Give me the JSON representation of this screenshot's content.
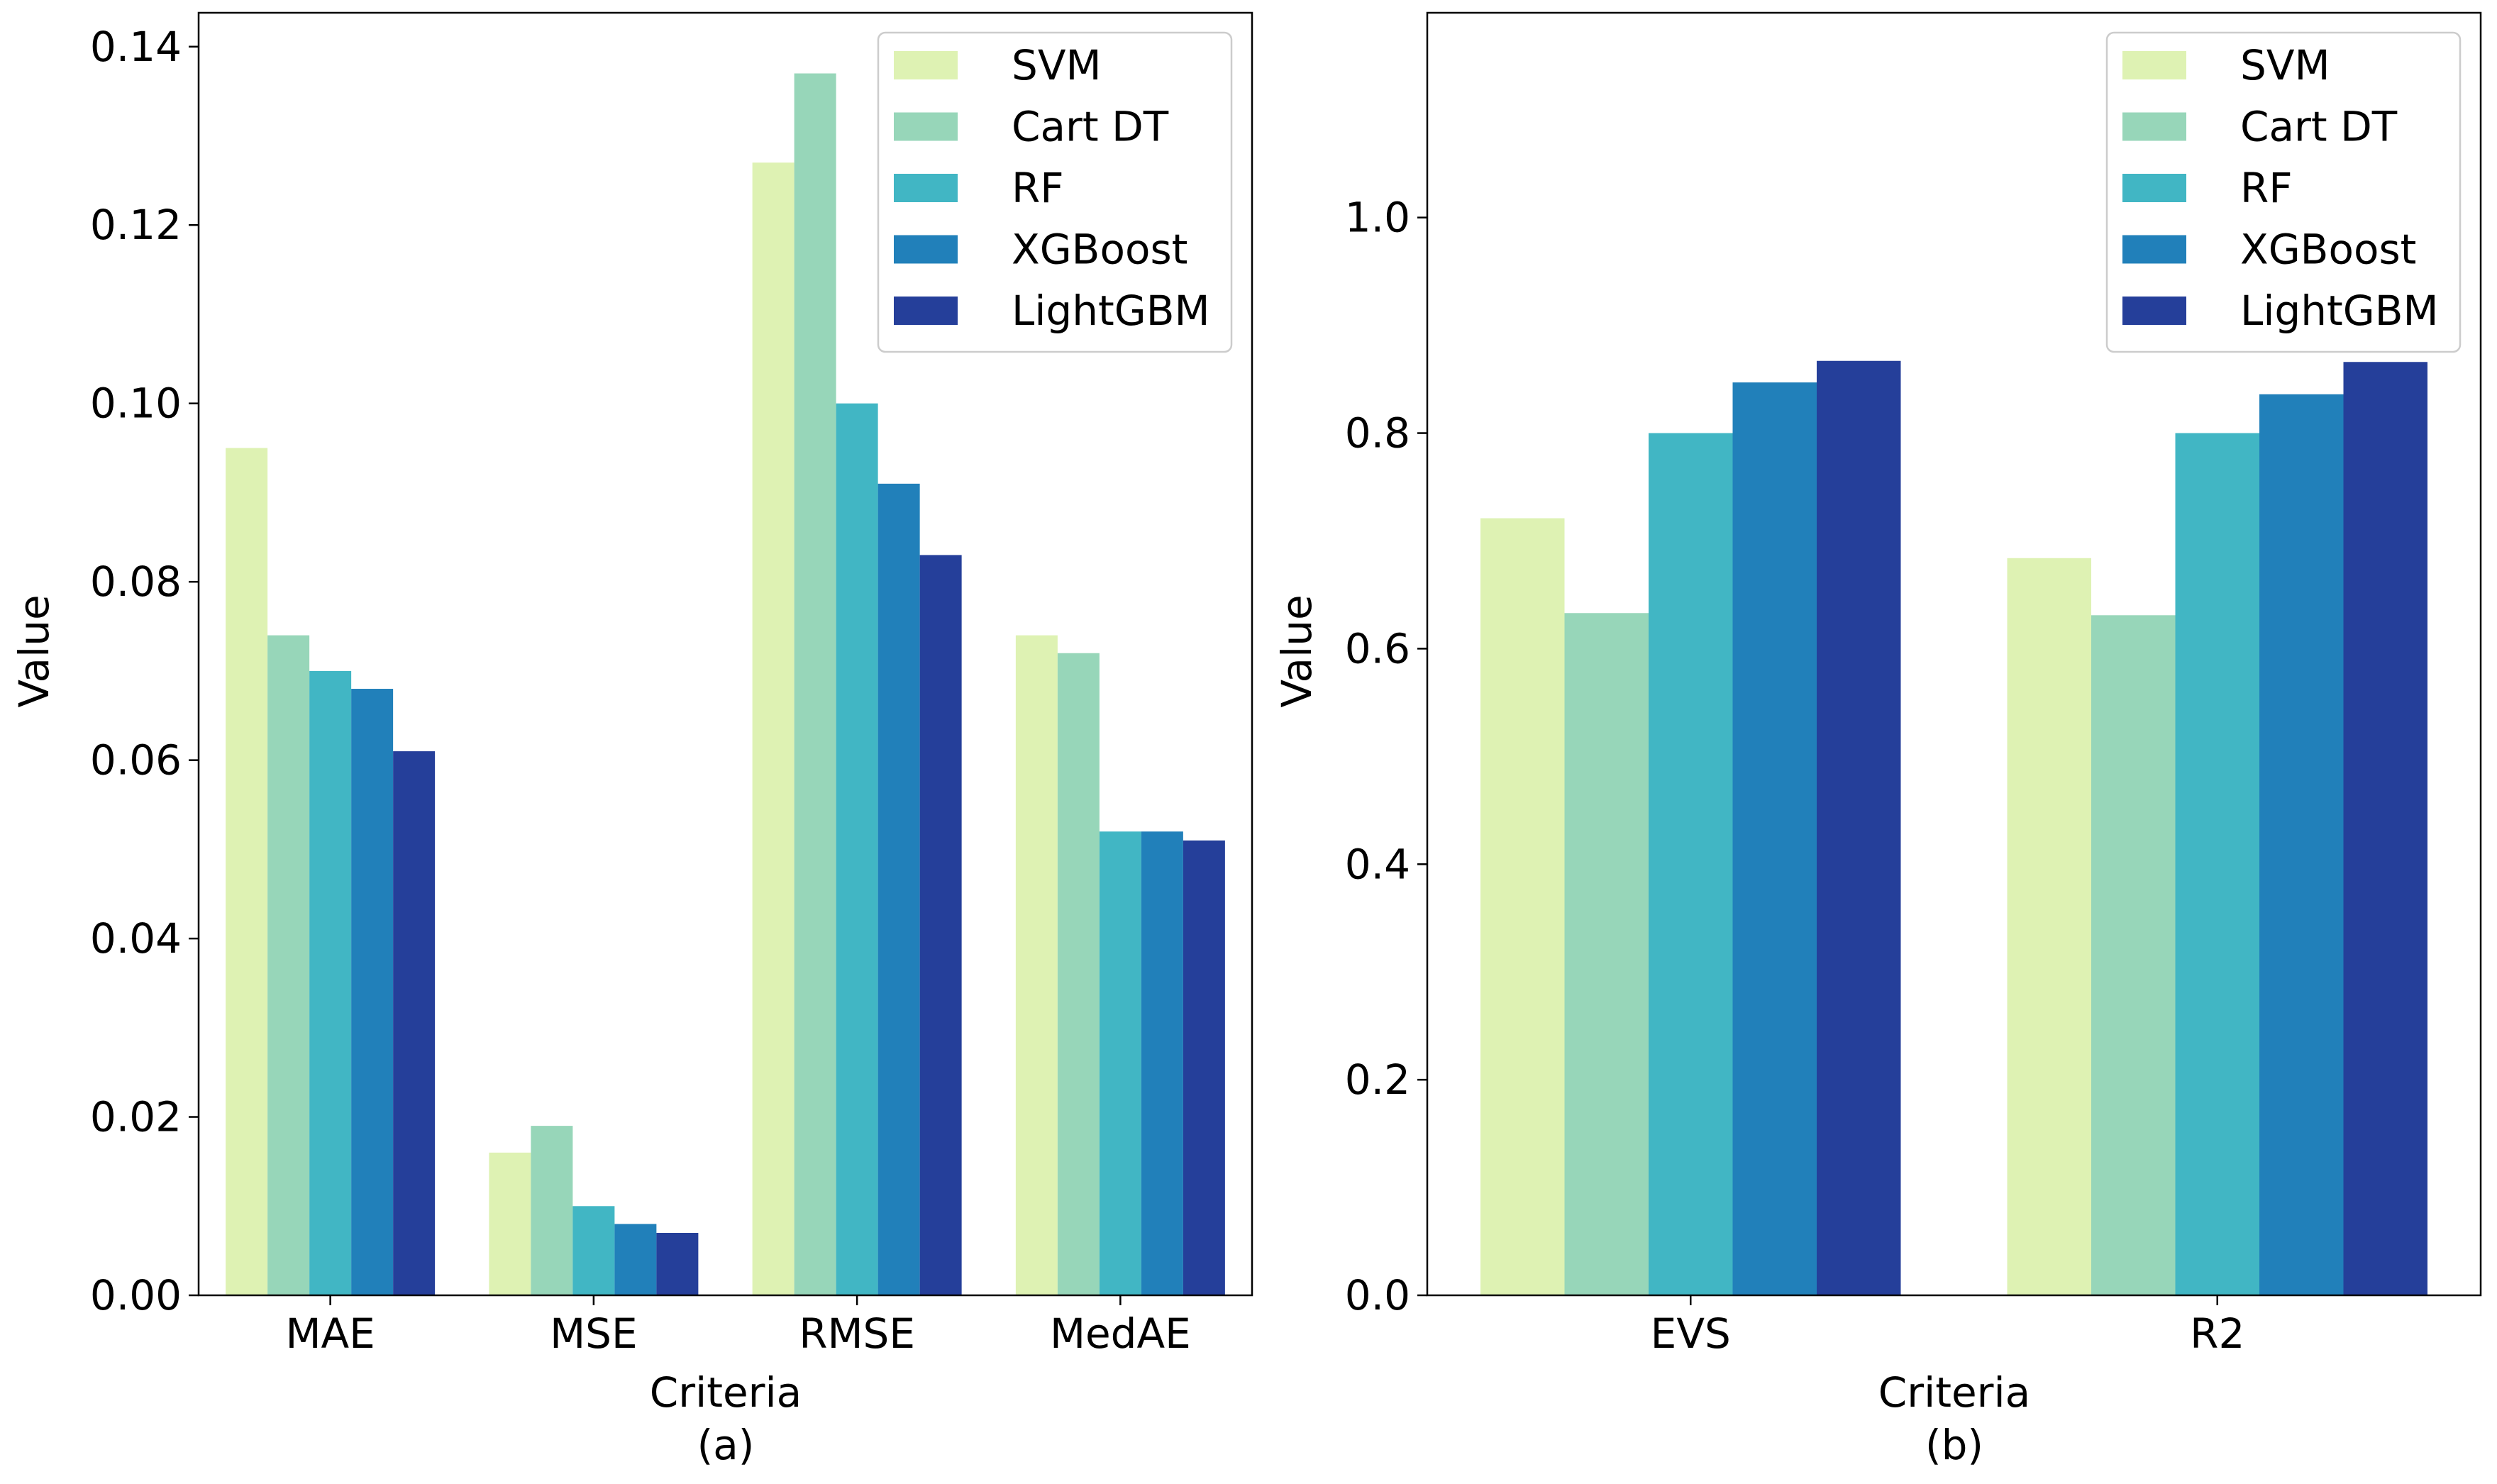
{
  "figure": {
    "legend_entries": [
      "SVM",
      "Cart DT",
      "RF",
      "XGBoost",
      "LightGBM"
    ],
    "series_colors": [
      "#DEF2B3",
      "#97D6B9",
      "#41B6C4",
      "#2180BA",
      "#253F9A"
    ]
  },
  "chart_data": [
    {
      "type": "bar",
      "title": "",
      "caption": "(a)",
      "xlabel": "Criteria",
      "ylabel": "Value",
      "categories": [
        "MAE",
        "MSE",
        "RMSE",
        "MedAE"
      ],
      "series": [
        {
          "name": "SVM",
          "values": [
            0.095,
            0.016,
            0.127,
            0.074
          ]
        },
        {
          "name": "Cart DT",
          "values": [
            0.074,
            0.019,
            0.137,
            0.072
          ]
        },
        {
          "name": "RF",
          "values": [
            0.07,
            0.01,
            0.1,
            0.052
          ]
        },
        {
          "name": "XGBoost",
          "values": [
            0.068,
            0.008,
            0.091,
            0.052
          ]
        },
        {
          "name": "LightGBM",
          "values": [
            0.061,
            0.007,
            0.083,
            0.051
          ]
        }
      ],
      "ylim": [
        0,
        0.1438
      ],
      "yticks": [
        0.0,
        0.02,
        0.04,
        0.06,
        0.08,
        0.1,
        0.12,
        0.14
      ],
      "ytick_labels": [
        "0.00",
        "0.02",
        "0.04",
        "0.06",
        "0.08",
        "0.10",
        "0.12",
        "0.14"
      ],
      "grid": false,
      "legend_position": "top-right"
    },
    {
      "type": "bar",
      "title": "",
      "caption": "(b)",
      "xlabel": "Criteria",
      "ylabel": "Value",
      "categories": [
        "EVS",
        "R2"
      ],
      "series": [
        {
          "name": "SVM",
          "values": [
            0.721,
            0.684
          ]
        },
        {
          "name": "Cart DT",
          "values": [
            0.633,
            0.631
          ]
        },
        {
          "name": "RF",
          "values": [
            0.8,
            0.8
          ]
        },
        {
          "name": "XGBoost",
          "values": [
            0.847,
            0.836
          ]
        },
        {
          "name": "LightGBM",
          "values": [
            0.867,
            0.866
          ]
        }
      ],
      "ylim": [
        0,
        1.19
      ],
      "yticks": [
        0.0,
        0.2,
        0.4,
        0.6,
        0.8,
        1.0
      ],
      "ytick_labels": [
        "0.0",
        "0.2",
        "0.4",
        "0.6",
        "0.8",
        "1.0"
      ],
      "grid": false,
      "legend_position": "top-right"
    }
  ]
}
